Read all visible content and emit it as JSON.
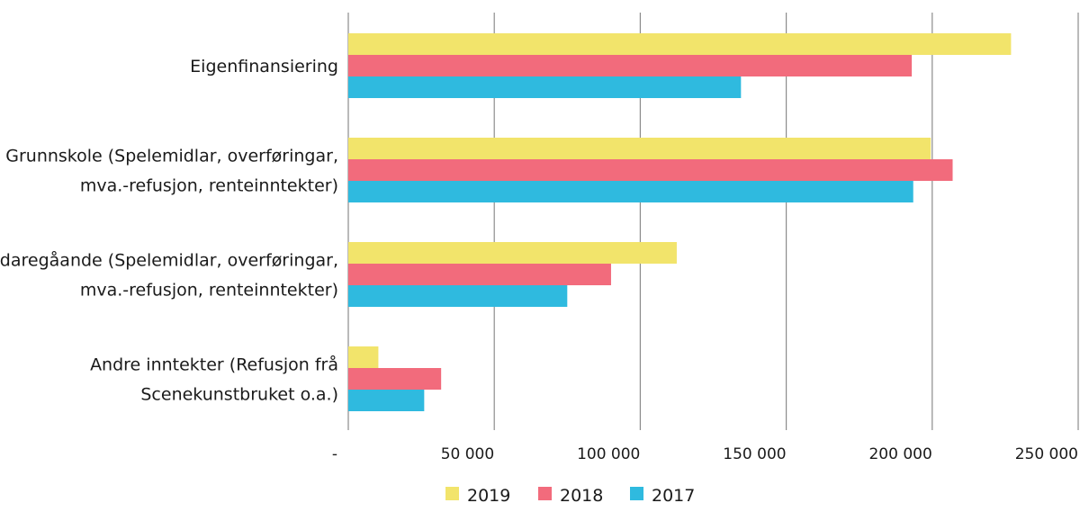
{
  "chart_data": {
    "type": "bar",
    "orientation": "horizontal",
    "title": "",
    "xlabel": "",
    "ylabel": "",
    "categories": [
      [
        "Eigenfinansiering"
      ],
      [
        "Grunnskole (Spelemidlar, overføringar,",
        "mva.-refusjon, renteinntekter)"
      ],
      [
        "Vidaregåande (Spelemidlar, overføringar,",
        "mva.-refusjon, renteinntekter)"
      ],
      [
        "Andre inntekter (Refusjon frå",
        "Scenekunstbruket o.a.)"
      ]
    ],
    "series": [
      {
        "name": "2019",
        "color": "#f2e46b",
        "values": [
          227000,
          199500,
          112500,
          10300
        ]
      },
      {
        "name": "2018",
        "color": "#f26b7c",
        "values": [
          193000,
          207000,
          90000,
          31800
        ]
      },
      {
        "name": "2017",
        "color": "#2fbadf",
        "values": [
          134500,
          193500,
          75000,
          26000
        ]
      }
    ],
    "xlim": [
      0,
      250000
    ],
    "x_ticks": [
      0,
      50000,
      100000,
      150000,
      200000,
      250000
    ],
    "x_tick_labels": [
      "-",
      "50 000",
      "100 000",
      "150 000",
      "200 000",
      "250 000"
    ],
    "grid": true,
    "legend_position": "bottom-center"
  }
}
